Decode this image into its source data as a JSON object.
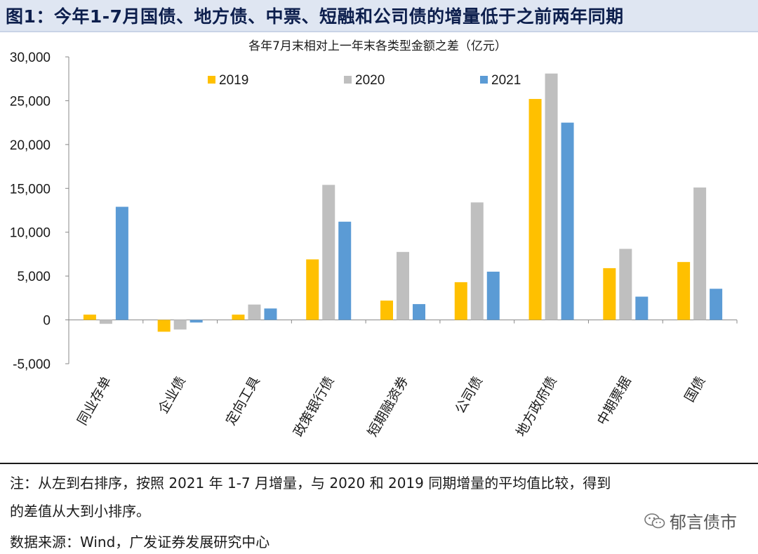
{
  "figure": {
    "title": "图1：今年1-7月国债、地方债、中票、短融和公司债的增量低于之前两年同期"
  },
  "chart_data": {
    "type": "bar",
    "title": "各年7月末相对上一年末各类型金额之差（亿元）",
    "xlabel": "",
    "ylabel": "",
    "categories": [
      "同业存单",
      "企业债",
      "定向工具",
      "政策银行债",
      "短期融资券",
      "公司债",
      "地方政府债",
      "中期票据",
      "国债"
    ],
    "series": [
      {
        "name": "2019",
        "color": "#ffc000",
        "values": [
          600,
          -1350,
          600,
          6900,
          2200,
          4300,
          25200,
          5900,
          6600
        ]
      },
      {
        "name": "2020",
        "color": "#bfbfbf",
        "values": [
          -450,
          -1100,
          1750,
          15400,
          7750,
          13400,
          28100,
          8100,
          15100
        ]
      },
      {
        "name": "2021",
        "color": "#5b9bd5",
        "values": [
          12900,
          -300,
          1300,
          11200,
          1800,
          5500,
          22500,
          2650,
          3550
        ]
      }
    ],
    "ylim": [
      -5000,
      30000
    ],
    "yticks": [
      -5000,
      0,
      5000,
      10000,
      15000,
      20000,
      25000,
      30000
    ],
    "ytick_labels": [
      "-5,000",
      "0",
      "5,000",
      "10,000",
      "15,000",
      "20,000",
      "25,000",
      "30,000"
    ],
    "legend_position": "top",
    "grid": false
  },
  "footer": {
    "note_line_1": "注：从左到右排序，按照 2021 年 1-7 月增量，与 2020 和 2019 同期增量的平均值比较，得到",
    "note_line_2": "的差值从大到小排序。",
    "source": "数据来源：Wind，广发证券发展研究中心",
    "watermark": "郁言债市"
  }
}
